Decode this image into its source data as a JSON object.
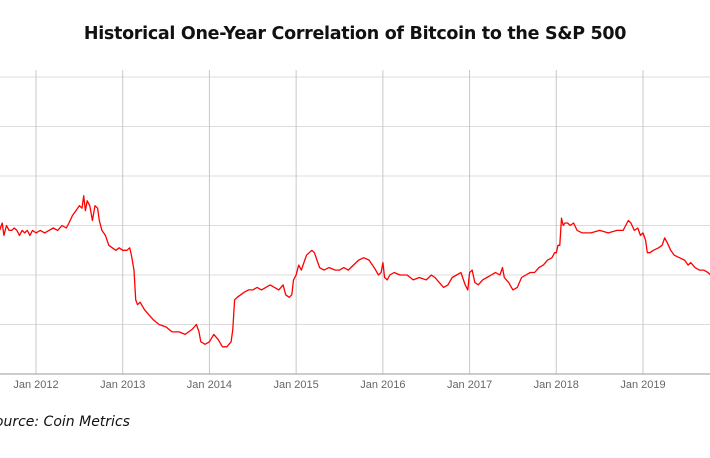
{
  "chart_data": {
    "type": "line",
    "title": "Historical One-Year Correlation of Bitcoin to the S&P 500",
    "xlabel": "",
    "ylabel": "",
    "x_tick_labels": [
      "Jan 2012",
      "Jan 2013",
      "Jan 2014",
      "Jan 2015",
      "Jan 2016",
      "Jan 2017",
      "Jan 2018",
      "Jan 2019"
    ],
    "x_tick_years": [
      2012,
      2013,
      2014,
      2015,
      2016,
      2017,
      2018,
      2019
    ],
    "xlim": [
      2011.58,
      2019.78
    ],
    "ylim": [
      -0.3,
      0.3
    ],
    "y_gridlines": [
      -0.2,
      -0.1,
      0.0,
      0.1,
      0.2,
      0.3
    ],
    "grid": true,
    "line_color": "#ff0000",
    "series": [
      {
        "name": "One-Year Correlation",
        "points": [
          [
            2011.58,
            -0.01
          ],
          [
            2011.61,
            0.005
          ],
          [
            2011.63,
            -0.02
          ],
          [
            2011.66,
            0.0
          ],
          [
            2011.69,
            -0.01
          ],
          [
            2011.72,
            -0.01
          ],
          [
            2011.75,
            -0.005
          ],
          [
            2011.78,
            -0.01
          ],
          [
            2011.81,
            -0.02
          ],
          [
            2011.84,
            -0.01
          ],
          [
            2011.87,
            -0.015
          ],
          [
            2011.9,
            -0.01
          ],
          [
            2011.93,
            -0.02
          ],
          [
            2011.96,
            -0.01
          ],
          [
            2012.0,
            -0.015
          ],
          [
            2012.05,
            -0.01
          ],
          [
            2012.1,
            -0.015
          ],
          [
            2012.15,
            -0.01
          ],
          [
            2012.2,
            -0.005
          ],
          [
            2012.25,
            -0.01
          ],
          [
            2012.3,
            0.0
          ],
          [
            2012.35,
            -0.005
          ],
          [
            2012.38,
            0.005
          ],
          [
            2012.42,
            0.02
          ],
          [
            2012.46,
            0.03
          ],
          [
            2012.5,
            0.04
          ],
          [
            2012.53,
            0.035
          ],
          [
            2012.55,
            0.06
          ],
          [
            2012.57,
            0.03
          ],
          [
            2012.59,
            0.05
          ],
          [
            2012.62,
            0.04
          ],
          [
            2012.65,
            0.01
          ],
          [
            2012.68,
            0.04
          ],
          [
            2012.71,
            0.035
          ],
          [
            2012.73,
            0.01
          ],
          [
            2012.76,
            -0.01
          ],
          [
            2012.8,
            -0.02
          ],
          [
            2012.84,
            -0.04
          ],
          [
            2012.88,
            -0.045
          ],
          [
            2012.92,
            -0.05
          ],
          [
            2012.96,
            -0.045
          ],
          [
            2013.0,
            -0.05
          ],
          [
            2013.05,
            -0.05
          ],
          [
            2013.08,
            -0.045
          ],
          [
            2013.1,
            -0.06
          ],
          [
            2013.13,
            -0.09
          ],
          [
            2013.15,
            -0.15
          ],
          [
            2013.17,
            -0.16
          ],
          [
            2013.2,
            -0.155
          ],
          [
            2013.25,
            -0.17
          ],
          [
            2013.3,
            -0.18
          ],
          [
            2013.35,
            -0.19
          ],
          [
            2013.42,
            -0.2
          ],
          [
            2013.5,
            -0.205
          ],
          [
            2013.57,
            -0.215
          ],
          [
            2013.65,
            -0.215
          ],
          [
            2013.72,
            -0.22
          ],
          [
            2013.8,
            -0.21
          ],
          [
            2013.85,
            -0.2
          ],
          [
            2013.88,
            -0.215
          ],
          [
            2013.9,
            -0.235
          ],
          [
            2013.95,
            -0.24
          ],
          [
            2014.0,
            -0.235
          ],
          [
            2014.05,
            -0.22
          ],
          [
            2014.1,
            -0.23
          ],
          [
            2014.15,
            -0.245
          ],
          [
            2014.2,
            -0.245
          ],
          [
            2014.25,
            -0.235
          ],
          [
            2014.27,
            -0.21
          ],
          [
            2014.29,
            -0.15
          ],
          [
            2014.32,
            -0.145
          ],
          [
            2014.36,
            -0.14
          ],
          [
            2014.4,
            -0.135
          ],
          [
            2014.45,
            -0.13
          ],
          [
            2014.5,
            -0.13
          ],
          [
            2014.55,
            -0.125
          ],
          [
            2014.6,
            -0.13
          ],
          [
            2014.65,
            -0.125
          ],
          [
            2014.7,
            -0.12
          ],
          [
            2014.75,
            -0.125
          ],
          [
            2014.8,
            -0.13
          ],
          [
            2014.85,
            -0.12
          ],
          [
            2014.88,
            -0.14
          ],
          [
            2014.92,
            -0.145
          ],
          [
            2014.95,
            -0.14
          ],
          [
            2014.97,
            -0.11
          ],
          [
            2015.0,
            -0.1
          ],
          [
            2015.03,
            -0.08
          ],
          [
            2015.06,
            -0.09
          ],
          [
            2015.09,
            -0.075
          ],
          [
            2015.12,
            -0.06
          ],
          [
            2015.15,
            -0.055
          ],
          [
            2015.18,
            -0.05
          ],
          [
            2015.21,
            -0.055
          ],
          [
            2015.24,
            -0.07
          ],
          [
            2015.27,
            -0.085
          ],
          [
            2015.32,
            -0.09
          ],
          [
            2015.38,
            -0.085
          ],
          [
            2015.45,
            -0.09
          ],
          [
            2015.5,
            -0.09
          ],
          [
            2015.55,
            -0.085
          ],
          [
            2015.6,
            -0.09
          ],
          [
            2015.66,
            -0.08
          ],
          [
            2015.72,
            -0.07
          ],
          [
            2015.78,
            -0.065
          ],
          [
            2015.84,
            -0.07
          ],
          [
            2015.9,
            -0.085
          ],
          [
            2015.95,
            -0.1
          ],
          [
            2015.98,
            -0.095
          ],
          [
            2016.0,
            -0.075
          ],
          [
            2016.02,
            -0.105
          ],
          [
            2016.05,
            -0.11
          ],
          [
            2016.08,
            -0.1
          ],
          [
            2016.13,
            -0.095
          ],
          [
            2016.2,
            -0.1
          ],
          [
            2016.28,
            -0.1
          ],
          [
            2016.35,
            -0.11
          ],
          [
            2016.42,
            -0.105
          ],
          [
            2016.5,
            -0.11
          ],
          [
            2016.56,
            -0.1
          ],
          [
            2016.6,
            -0.105
          ],
          [
            2016.65,
            -0.115
          ],
          [
            2016.7,
            -0.125
          ],
          [
            2016.75,
            -0.12
          ],
          [
            2016.8,
            -0.105
          ],
          [
            2016.85,
            -0.1
          ],
          [
            2016.9,
            -0.095
          ],
          [
            2016.95,
            -0.12
          ],
          [
            2016.98,
            -0.13
          ],
          [
            2017.0,
            -0.095
          ],
          [
            2017.03,
            -0.09
          ],
          [
            2017.06,
            -0.115
          ],
          [
            2017.1,
            -0.12
          ],
          [
            2017.15,
            -0.11
          ],
          [
            2017.2,
            -0.105
          ],
          [
            2017.25,
            -0.1
          ],
          [
            2017.3,
            -0.095
          ],
          [
            2017.35,
            -0.1
          ],
          [
            2017.38,
            -0.085
          ],
          [
            2017.4,
            -0.105
          ],
          [
            2017.45,
            -0.115
          ],
          [
            2017.5,
            -0.13
          ],
          [
            2017.55,
            -0.125
          ],
          [
            2017.6,
            -0.105
          ],
          [
            2017.65,
            -0.1
          ],
          [
            2017.7,
            -0.095
          ],
          [
            2017.75,
            -0.095
          ],
          [
            2017.8,
            -0.085
          ],
          [
            2017.85,
            -0.08
          ],
          [
            2017.9,
            -0.07
          ],
          [
            2017.95,
            -0.065
          ],
          [
            2017.98,
            -0.055
          ],
          [
            2018.0,
            -0.055
          ],
          [
            2018.02,
            -0.04
          ],
          [
            2018.04,
            -0.04
          ],
          [
            2018.06,
            0.015
          ],
          [
            2018.08,
            0.0
          ],
          [
            2018.1,
            0.005
          ],
          [
            2018.13,
            0.005
          ],
          [
            2018.16,
            0.0
          ],
          [
            2018.2,
            0.005
          ],
          [
            2018.24,
            -0.01
          ],
          [
            2018.3,
            -0.015
          ],
          [
            2018.4,
            -0.015
          ],
          [
            2018.5,
            -0.01
          ],
          [
            2018.6,
            -0.015
          ],
          [
            2018.7,
            -0.01
          ],
          [
            2018.77,
            -0.01
          ],
          [
            2018.8,
            0.0
          ],
          [
            2018.83,
            0.01
          ],
          [
            2018.86,
            0.005
          ],
          [
            2018.9,
            -0.01
          ],
          [
            2018.94,
            -0.005
          ],
          [
            2018.97,
            -0.02
          ],
          [
            2019.0,
            -0.015
          ],
          [
            2019.03,
            -0.03
          ],
          [
            2019.05,
            -0.055
          ],
          [
            2019.08,
            -0.055
          ],
          [
            2019.12,
            -0.05
          ],
          [
            2019.18,
            -0.045
          ],
          [
            2019.22,
            -0.04
          ],
          [
            2019.25,
            -0.025
          ],
          [
            2019.28,
            -0.035
          ],
          [
            2019.32,
            -0.05
          ],
          [
            2019.36,
            -0.06
          ],
          [
            2019.42,
            -0.065
          ],
          [
            2019.48,
            -0.07
          ],
          [
            2019.52,
            -0.08
          ],
          [
            2019.55,
            -0.075
          ],
          [
            2019.6,
            -0.085
          ],
          [
            2019.65,
            -0.09
          ],
          [
            2019.7,
            -0.09
          ],
          [
            2019.75,
            -0.095
          ],
          [
            2019.78,
            -0.1
          ]
        ]
      }
    ],
    "source": "Source: Coin Metrics"
  }
}
